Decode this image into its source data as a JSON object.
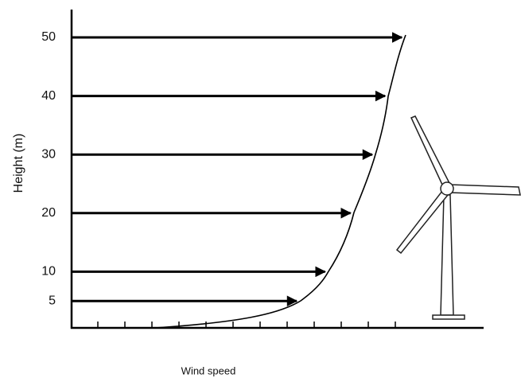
{
  "y_axis": {
    "label": "Height  (m)",
    "ticks": [
      5,
      10,
      20,
      30,
      40,
      50
    ]
  },
  "x_axis": {
    "label": "Wind speed"
  }
}
